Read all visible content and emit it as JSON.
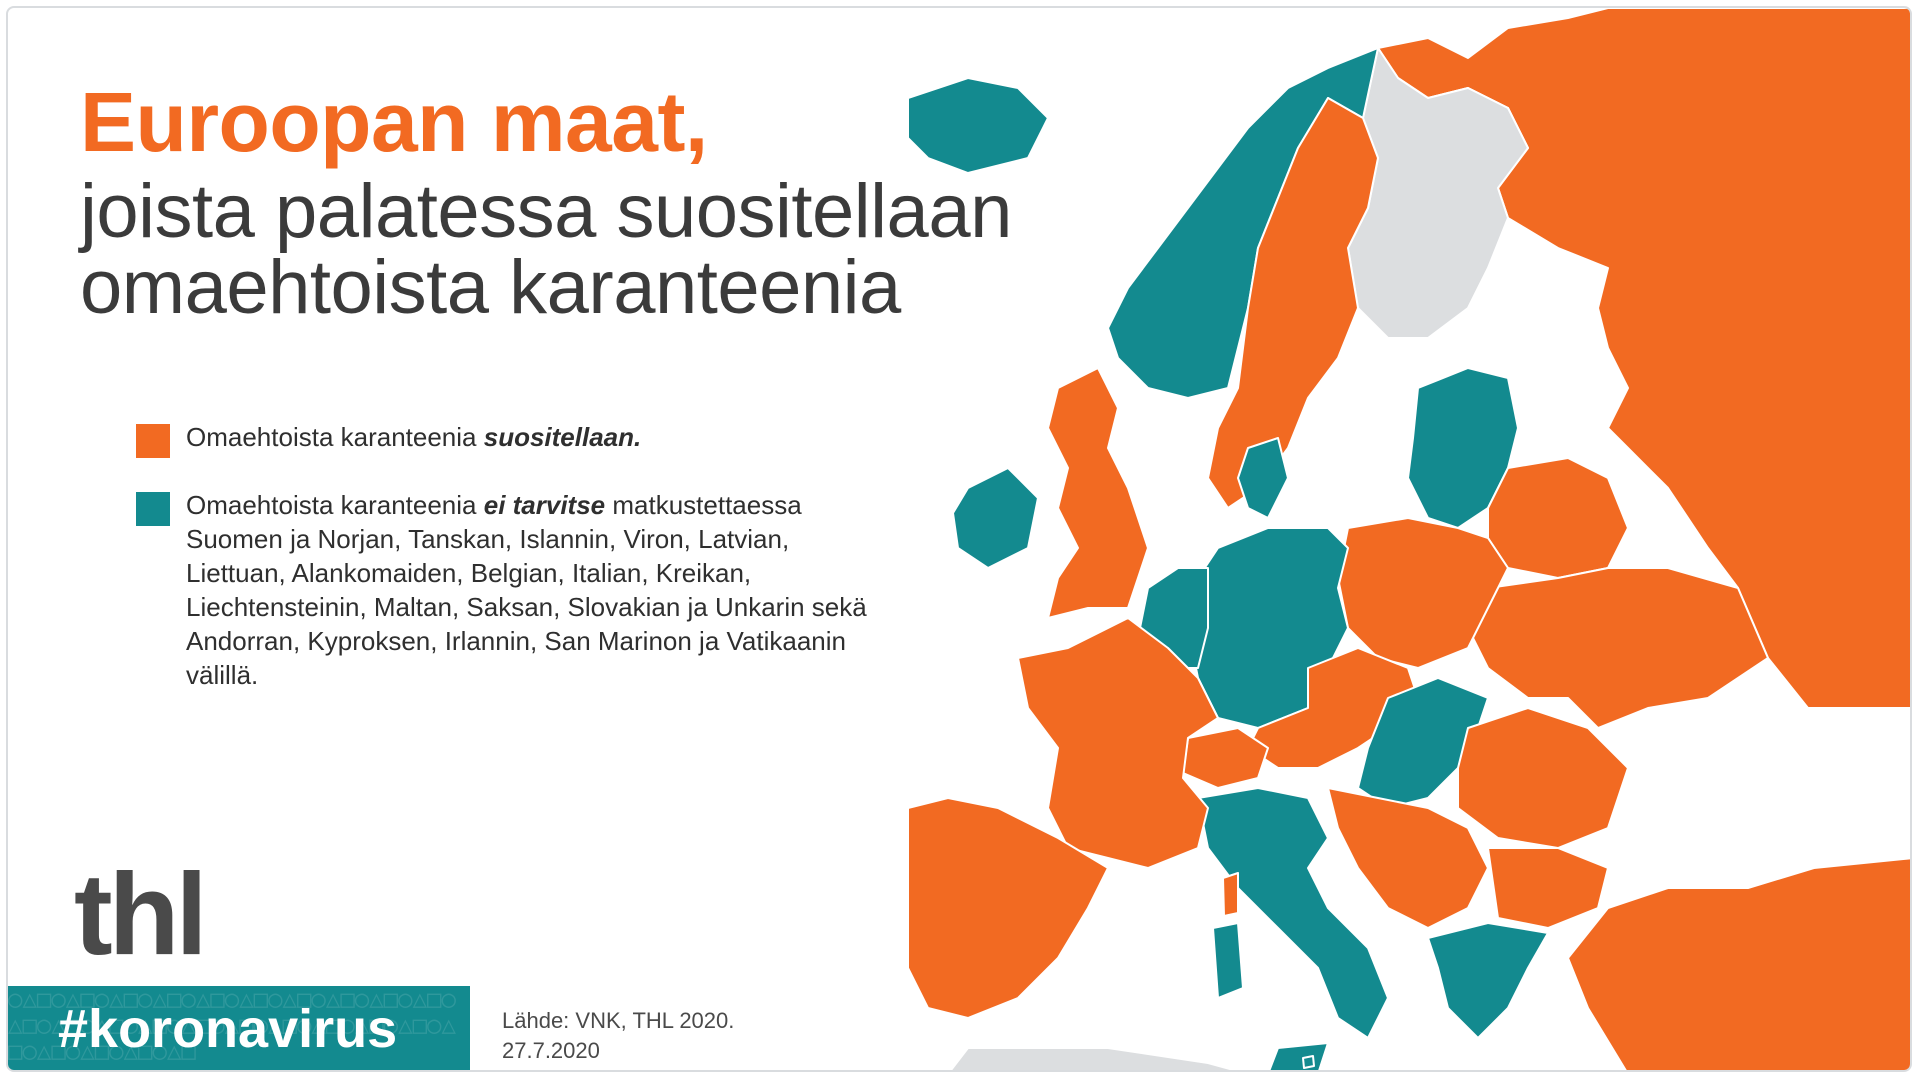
{
  "title": {
    "main": "Euroopan maat,",
    "sub_line1": "joista palatessa suositellaan",
    "sub_line2": "omaehtoista karanteenia"
  },
  "legend": {
    "item1": {
      "color": "#f26a22",
      "text_before": "Omaehtoista karanteenia ",
      "emphasis": "suositellaan."
    },
    "item2": {
      "color": "#138a8f",
      "text_before": "Omaehtoista karanteenia ",
      "emphasis": "ei tarvitse",
      "text_after": " matkustettaessa Suomen ja Norjan, Tanskan, Islannin, Viron, Latvian, Liettuan, Alankomaiden, Belgian, Italian, Kreikan, Liechtensteinin, Maltan, Saksan, Slovakian ja Unkarin sekä Andorran, Kyproksen, Irlannin, San Marinon ja Vatikaanin välillä."
    }
  },
  "map": {
    "colors": {
      "recommended": "#f26a22",
      "not_required": "#138a8f",
      "finland": "#dcdee0",
      "other": "#dcdee0",
      "sea": "#ffffff",
      "border": "#ffffff"
    }
  },
  "logo": {
    "text": "thl"
  },
  "hashtag": {
    "text": "#koronavirus"
  },
  "source": {
    "line1": "Lähde: VNK, THL 2020.",
    "line2": "27.7.2020"
  }
}
